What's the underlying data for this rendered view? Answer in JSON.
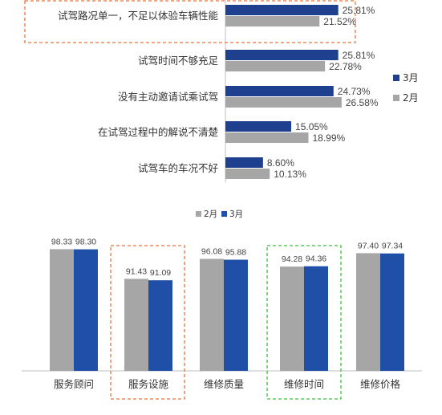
{
  "colors": {
    "march": "#1f3f8f",
    "feb": "#a6a6a6",
    "vbar_march": "#1f4fa6",
    "highlight_orange": "#e8733a",
    "highlight_green": "#3fbf3f",
    "axis": "#bfbfbf"
  },
  "chart_data": [
    {
      "type": "bar",
      "orientation": "horizontal",
      "categories": [
        "试驾路况单一，不足以体验车辆性能",
        "试驾时间不够充足",
        "没有主动邀请试乘试驾",
        "在试驾过程中的解说不清楚",
        "试驾车的车况不好"
      ],
      "series": [
        {
          "name": "3月",
          "values": [
            25.81,
            25.81,
            24.73,
            15.05,
            8.6
          ],
          "labels": [
            "25.81%",
            "25.81%",
            "24.73%",
            "15.05%",
            "8.60%"
          ]
        },
        {
          "name": "2月",
          "values": [
            21.52,
            22.78,
            26.58,
            18.99,
            10.13
          ],
          "labels": [
            "21.52%",
            "22.78%",
            "26.58%",
            "18.99%",
            "10.13%"
          ]
        }
      ],
      "legend": {
        "position": "right",
        "items": [
          "3月",
          "2月"
        ]
      },
      "highlighted_category": "试驾路况单一，不足以体验车辆性能",
      "highlight_style": "orange dashed box"
    },
    {
      "type": "bar",
      "orientation": "vertical",
      "categories": [
        "服务顾问",
        "服务设施",
        "维修质量",
        "维修时间",
        "维修价格"
      ],
      "series": [
        {
          "name": "2月",
          "values": [
            98.33,
            91.43,
            96.08,
            94.28,
            97.4
          ],
          "labels": [
            "98.33",
            "91.43",
            "96.08",
            "94.28",
            "97.40"
          ]
        },
        {
          "name": "3月",
          "values": [
            98.3,
            91.09,
            95.88,
            94.36,
            97.34
          ],
          "labels": [
            "98.30",
            "91.09",
            "95.88",
            "94.36",
            "97.34"
          ]
        }
      ],
      "legend": {
        "position": "top",
        "items": [
          "2月",
          "3月"
        ]
      },
      "ylim": [
        70,
        100
      ],
      "highlighted_categories": [
        {
          "category": "服务设施",
          "style": "orange dashed box"
        },
        {
          "category": "维修时间",
          "style": "green dashed box"
        }
      ]
    }
  ]
}
